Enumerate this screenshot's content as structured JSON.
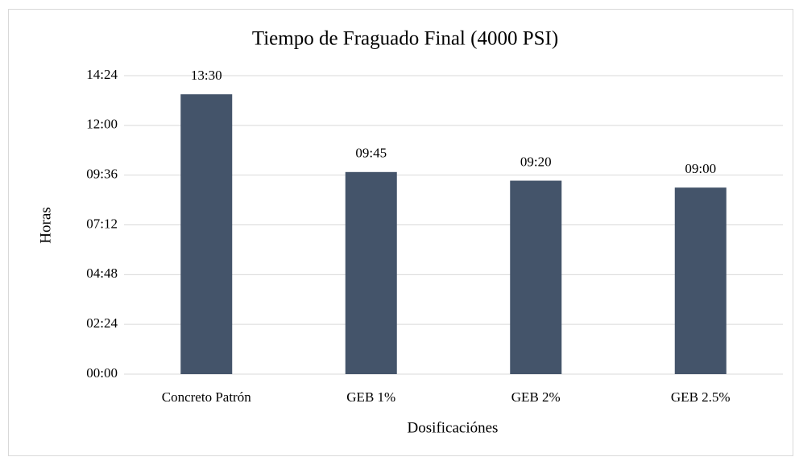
{
  "chart_data": {
    "type": "bar",
    "title": "Tiempo de Fraguado Final (4000 PSI)",
    "x_label": "Dosificaciónes",
    "y_label": "Horas",
    "categories": [
      "Concreto Patrón",
      "GEB 1%",
      "GEB 2%",
      "GEB 2.5%"
    ],
    "values": [
      13.5,
      9.75,
      9.333,
      9
    ],
    "value_labels": [
      "13:30",
      "09:45",
      "09:20",
      "09:00"
    ],
    "color": "#44546a",
    "ylim": [
      0,
      14.4
    ],
    "yticks": [
      {
        "value": 0,
        "label": "00:00"
      },
      {
        "value": 2.4,
        "label": "02:24"
      },
      {
        "value": 4.8,
        "label": "04:48"
      },
      {
        "value": 7.2,
        "label": "07:12"
      },
      {
        "value": 9.6,
        "label": "09:36"
      },
      {
        "value": 12,
        "label": "12:00"
      },
      {
        "value": 14.4,
        "label": "14:24"
      }
    ],
    "grid": true
  }
}
